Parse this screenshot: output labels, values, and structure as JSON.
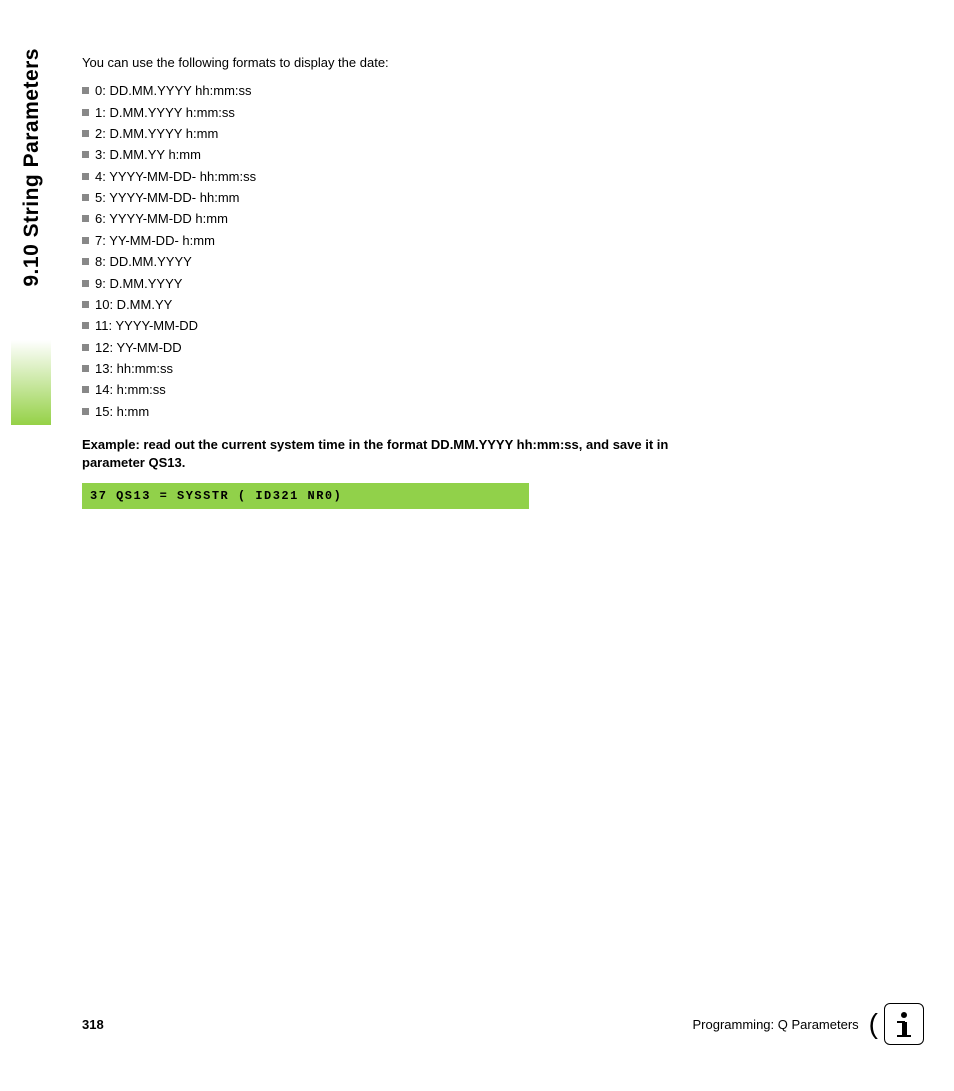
{
  "sidebar": {
    "title": "9.10 String Parameters",
    "gradient_color": "#95d147"
  },
  "content": {
    "intro": "You can use the following formats to display the date:",
    "formats": [
      "0: DD.MM.YYYY hh:mm:ss",
      "1: D.MM.YYYY h:mm:ss",
      "2: D.MM.YYYY h:mm",
      "3: D.MM.YY h:mm",
      "4: YYYY-MM-DD- hh:mm:ss",
      "5: YYYY-MM-DD- hh:mm",
      "6: YYYY-MM-DD h:mm",
      "7: YY-MM-DD- h:mm",
      "8: DD.MM.YYYY",
      "9: D.MM.YYYY",
      "10: D.MM.YY",
      "11: YYYY-MM-DD",
      "12: YY-MM-DD",
      "13: hh:mm:ss",
      "14: h:mm:ss",
      "15: h:mm"
    ],
    "example_text": "Example: read out the current system time in the format DD.MM.YYYY hh:mm:ss, and save it in parameter QS13.",
    "code": "37 QS13 = SYSSTR ( ID321 NR0)",
    "code_bg": "#91d14a"
  },
  "footer": {
    "page_number": "318",
    "section_text": "Programming: Q Parameters"
  },
  "colors": {
    "text": "#000000",
    "bullet": "#888888",
    "background": "#ffffff"
  }
}
